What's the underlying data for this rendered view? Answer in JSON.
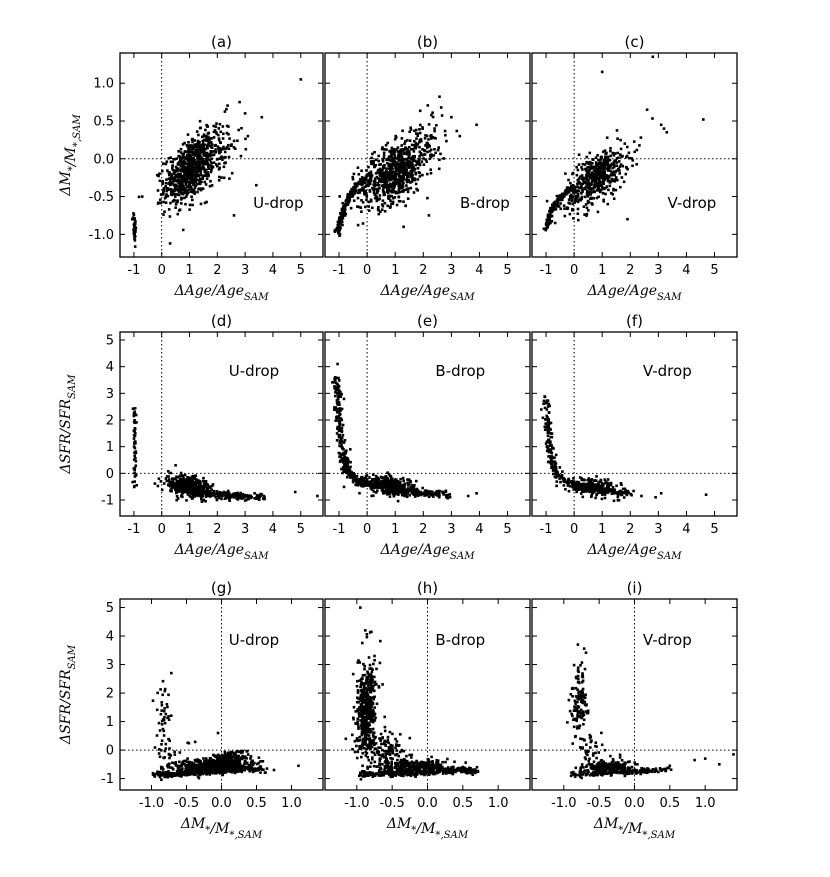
{
  "figure": {
    "colors": {
      "points": "#000000",
      "axes": "#000000",
      "refline": "#000000",
      "background": "#ffffff"
    },
    "row_axis": {
      "row1": {
        "ylabel": "ΔM*/M*,SAM",
        "xlabel": "ΔAge/AgeSAM"
      },
      "row2": {
        "ylabel": "ΔSFR/SFRSAM",
        "xlabel": "ΔAge/AgeSAM"
      },
      "row3": {
        "ylabel": "ΔSFR/SFRSAM",
        "xlabel": "ΔM*/M*,SAM"
      }
    }
  },
  "chart_data": [
    {
      "type": "scatter",
      "panel": "(a)",
      "title": "(a)",
      "annotation": "U-drop",
      "xlabel": "ΔAge/AgeSAM",
      "ylabel": "ΔM*/M*,SAM",
      "xlim": [
        -1.5,
        5.8
      ],
      "ylim": [
        -1.3,
        1.4
      ],
      "xticks": [
        -1,
        0,
        1,
        2,
        3,
        4,
        5
      ],
      "yticks": [
        -1.0,
        -0.5,
        0.0,
        0.5,
        1.0
      ],
      "xtick_labels": [
        "-1",
        "0",
        "1",
        "2",
        "3",
        "4",
        "5"
      ],
      "ytick_labels": [
        "-1.0",
        "-0.5",
        "0.0",
        "0.5",
        "1.0"
      ],
      "refline_x": 0,
      "refline_y": 0,
      "clusters": [
        {
          "cx": 1.0,
          "cy": -0.15,
          "sx": 0.45,
          "sy": 0.22,
          "rho": 0.5,
          "n": 700
        },
        {
          "cx": 1.9,
          "cy": 0.05,
          "sx": 0.5,
          "sy": 0.25,
          "rho": 0.4,
          "n": 120
        },
        {
          "cx": -0.98,
          "cy": -0.9,
          "sx": 0.03,
          "sy": 0.1,
          "rho": 0,
          "n": 40
        }
      ],
      "points": [
        [
          2.8,
          0.75
        ],
        [
          3.0,
          0.6
        ],
        [
          5.0,
          1.05
        ],
        [
          3.6,
          0.55
        ],
        [
          2.6,
          -0.75
        ],
        [
          3.4,
          -0.35
        ],
        [
          0.1,
          -0.7
        ],
        [
          3.1,
          0.3
        ],
        [
          -0.7,
          -0.5
        ]
      ]
    },
    {
      "type": "scatter",
      "panel": "(b)",
      "title": "(b)",
      "annotation": "B-drop",
      "xlabel": "ΔAge/AgeSAM",
      "ylabel": "",
      "xlim": [
        -1.5,
        5.8
      ],
      "ylim": [
        -1.3,
        1.4
      ],
      "xticks": [
        -1,
        0,
        1,
        2,
        3,
        4,
        5
      ],
      "yticks": [
        -1.0,
        -0.5,
        0.0,
        0.5,
        1.0
      ],
      "xtick_labels": [
        "-1",
        "0",
        "1",
        "2",
        "3",
        "4",
        "5"
      ],
      "ytick_labels": [],
      "refline_x": 0,
      "refline_y": 0,
      "clusters": [
        {
          "cx": 0.9,
          "cy": -0.2,
          "sx": 0.6,
          "sy": 0.22,
          "rho": 0.5,
          "n": 650
        },
        {
          "cx": 1.9,
          "cy": 0.1,
          "sx": 0.45,
          "sy": 0.25,
          "rho": 0.4,
          "n": 120
        }
      ],
      "curve": {
        "x": [
          -1.05,
          -1.0,
          -0.9,
          -0.75,
          -0.55,
          -0.3,
          0.0
        ],
        "y": [
          -1.0,
          -0.9,
          -0.75,
          -0.6,
          -0.45,
          -0.33,
          -0.25
        ],
        "n": 200,
        "jitter": 0.05
      },
      "points": [
        [
          3.9,
          0.45
        ],
        [
          3.3,
          0.3
        ],
        [
          2.2,
          -0.75
        ],
        [
          1.3,
          -0.9
        ],
        [
          3.0,
          0.55
        ]
      ]
    },
    {
      "type": "scatter",
      "panel": "(c)",
      "title": "(c)",
      "annotation": "V-drop",
      "xlabel": "ΔAge/AgeSAM",
      "ylabel": "",
      "xlim": [
        -1.5,
        5.8
      ],
      "ylim": [
        -1.3,
        1.4
      ],
      "xticks": [
        -1,
        0,
        1,
        2,
        3,
        4,
        5
      ],
      "yticks": [
        -1.0,
        -0.5,
        0.0,
        0.5,
        1.0
      ],
      "xtick_labels": [
        "-1",
        "0",
        "1",
        "2",
        "3",
        "4",
        "5"
      ],
      "ytick_labels": [],
      "refline_x": 0,
      "refline_y": 0,
      "clusters": [
        {
          "cx": 0.8,
          "cy": -0.25,
          "sx": 0.55,
          "sy": 0.2,
          "rho": 0.6,
          "n": 500
        }
      ],
      "curve": {
        "x": [
          -1.05,
          -0.95,
          -0.8,
          -0.6,
          -0.3,
          0.0
        ],
        "y": [
          -0.95,
          -0.85,
          -0.7,
          -0.55,
          -0.45,
          -0.38
        ],
        "n": 150,
        "jitter": 0.05
      },
      "points": [
        [
          1.0,
          1.15
        ],
        [
          2.6,
          0.65
        ],
        [
          3.1,
          0.45
        ],
        [
          3.3,
          0.35
        ],
        [
          4.6,
          0.52
        ],
        [
          2.8,
          1.35
        ],
        [
          3.2,
          0.4
        ],
        [
          1.9,
          -0.8
        ],
        [
          1.2,
          -0.6
        ]
      ]
    },
    {
      "type": "scatter",
      "panel": "(d)",
      "title": "(d)",
      "annotation": "U-drop",
      "xlabel": "ΔAge/AgeSAM",
      "ylabel": "ΔSFR/SFRSAM",
      "xlim": [
        -1.5,
        5.8
      ],
      "ylim": [
        -1.6,
        5.3
      ],
      "xticks": [
        -1,
        0,
        1,
        2,
        3,
        4,
        5
      ],
      "yticks": [
        -1,
        0,
        1,
        2,
        3,
        4,
        5
      ],
      "xtick_labels": [
        "-1",
        "0",
        "1",
        "2",
        "3",
        "4",
        "5"
      ],
      "ytick_labels": [
        "-1",
        "0",
        "1",
        "2",
        "3",
        "4",
        "5"
      ],
      "refline_x": 0,
      "refline_y": 0,
      "clusters": [
        {
          "cx": 0.95,
          "cy": -0.5,
          "sx": 0.35,
          "sy": 0.2,
          "rho": -0.3,
          "n": 450
        },
        {
          "cx": -0.97,
          "cy": 1.1,
          "sx": 0.03,
          "sy": 0.9,
          "rho": 0,
          "n": 45
        }
      ],
      "curve": {
        "x": [
          0.3,
          0.8,
          1.4,
          2.0,
          2.6,
          3.2,
          3.7
        ],
        "y": [
          -0.4,
          -0.6,
          -0.72,
          -0.8,
          -0.85,
          -0.88,
          -0.9
        ],
        "n": 250,
        "jitter": 0.07
      },
      "points": [
        [
          5.6,
          -0.85
        ],
        [
          4.8,
          -0.7
        ],
        [
          -0.9,
          -0.45
        ],
        [
          -0.1,
          -0.2
        ],
        [
          0.5,
          0.3
        ]
      ]
    },
    {
      "type": "scatter",
      "panel": "(e)",
      "title": "(e)",
      "annotation": "B-drop",
      "xlabel": "ΔAge/AgeSAM",
      "ylabel": "",
      "xlim": [
        -1.5,
        5.8
      ],
      "ylim": [
        -1.6,
        5.3
      ],
      "xticks": [
        -1,
        0,
        1,
        2,
        3,
        4,
        5
      ],
      "yticks": [
        -1,
        0,
        1,
        2,
        3,
        4,
        5
      ],
      "xtick_labels": [
        "-1",
        "0",
        "1",
        "2",
        "3",
        "4",
        "5"
      ],
      "ytick_labels": [],
      "refline_x": 0,
      "refline_y": 0,
      "clusters": [
        {
          "cx": 0.8,
          "cy": -0.45,
          "sx": 0.45,
          "sy": 0.18,
          "rho": -0.3,
          "n": 300
        }
      ],
      "curve": {
        "x": [
          -1.1,
          -1.02,
          -0.95,
          -0.85,
          -0.7,
          -0.4,
          0.0,
          0.6,
          1.2,
          1.8,
          2.4,
          3.0
        ],
        "y": [
          3.6,
          2.4,
          1.4,
          0.6,
          0.1,
          -0.25,
          -0.4,
          -0.55,
          -0.65,
          -0.72,
          -0.78,
          -0.8
        ],
        "n": 500,
        "jitter": 0.08
      },
      "points": [
        [
          -1.05,
          4.1
        ],
        [
          3.6,
          -0.85
        ],
        [
          3.9,
          -0.75
        ],
        [
          -0.6,
          0.9
        ]
      ]
    },
    {
      "type": "scatter",
      "panel": "(f)",
      "title": "(f)",
      "annotation": "V-drop",
      "xlabel": "ΔAge/AgeSAM",
      "ylabel": "",
      "xlim": [
        -1.5,
        5.8
      ],
      "ylim": [
        -1.6,
        5.3
      ],
      "xticks": [
        -1,
        0,
        1,
        2,
        3,
        4,
        5
      ],
      "yticks": [
        -1,
        0,
        1,
        2,
        3,
        4,
        5
      ],
      "xtick_labels": [
        "-1",
        "0",
        "1",
        "2",
        "3",
        "4",
        "5"
      ],
      "ytick_labels": [],
      "refline_x": 0,
      "refline_y": 0,
      "clusters": [
        {
          "cx": 0.7,
          "cy": -0.5,
          "sx": 0.45,
          "sy": 0.16,
          "rho": -0.3,
          "n": 220
        }
      ],
      "curve": {
        "x": [
          -1.0,
          -0.95,
          -0.9,
          -0.8,
          -0.6,
          -0.3,
          0.2,
          0.8,
          1.4,
          2.0
        ],
        "y": [
          3.0,
          2.0,
          1.2,
          0.5,
          0.0,
          -0.3,
          -0.5,
          -0.62,
          -0.7,
          -0.75
        ],
        "n": 300,
        "jitter": 0.07
      },
      "points": [
        [
          4.7,
          -0.8
        ],
        [
          3.1,
          -0.75
        ],
        [
          2.9,
          -0.9
        ],
        [
          2.4,
          -0.85
        ]
      ]
    },
    {
      "type": "scatter",
      "panel": "(g)",
      "title": "(g)",
      "annotation": "U-drop",
      "xlabel": "ΔM*/M*,SAM",
      "ylabel": "ΔSFR/SFRSAM",
      "xlim": [
        -1.45,
        1.45
      ],
      "ylim": [
        -1.4,
        5.3
      ],
      "xticks": [
        -1.0,
        -0.5,
        0.0,
        0.5,
        1.0
      ],
      "yticks": [
        -1,
        0,
        1,
        2,
        3,
        4,
        5
      ],
      "xtick_labels": [
        "-1.0",
        "-0.5",
        "0.0",
        "0.5",
        "1.0"
      ],
      "ytick_labels": [
        "-1",
        "0",
        "1",
        "2",
        "3",
        "4",
        "5"
      ],
      "refline_x": 0,
      "refline_y": 0,
      "clusters": [
        {
          "cx": -0.15,
          "cy": -0.55,
          "sx": 0.25,
          "sy": 0.12,
          "rho": 0.2,
          "n": 500
        },
        {
          "cx": 0.1,
          "cy": -0.3,
          "sx": 0.15,
          "sy": 0.15,
          "rho": 0.3,
          "n": 150
        },
        {
          "cx": -0.83,
          "cy": 1.2,
          "sx": 0.06,
          "sy": 0.8,
          "rho": 0.2,
          "n": 45
        },
        {
          "cx": -0.7,
          "cy": -0.15,
          "sx": 0.15,
          "sy": 0.25,
          "rho": 0,
          "n": 20
        }
      ],
      "curve": {
        "x": [
          -0.95,
          -0.7,
          -0.45,
          -0.2,
          0.1,
          0.4,
          0.6
        ],
        "y": [
          -0.85,
          -0.85,
          -0.8,
          -0.75,
          -0.7,
          -0.65,
          -0.7
        ],
        "n": 250,
        "jitter": 0.06
      },
      "points": [
        [
          1.1,
          -0.55
        ],
        [
          0.65,
          -0.65
        ],
        [
          -0.05,
          0.6
        ],
        [
          0.75,
          -0.7
        ]
      ]
    },
    {
      "type": "scatter",
      "panel": "(h)",
      "title": "(h)",
      "annotation": "B-drop",
      "xlabel": "ΔM*/M*,SAM",
      "ylabel": "",
      "xlim": [
        -1.45,
        1.45
      ],
      "ylim": [
        -1.4,
        5.3
      ],
      "xticks": [
        -1.0,
        -0.5,
        0.0,
        0.5,
        1.0
      ],
      "yticks": [
        -1,
        0,
        1,
        2,
        3,
        4,
        5
      ],
      "xtick_labels": [
        "-1.0",
        "-0.5",
        "0.0",
        "0.5",
        "1.0"
      ],
      "ytick_labels": [],
      "refline_x": 0,
      "refline_y": 0,
      "clusters": [
        {
          "cx": -0.87,
          "cy": 1.5,
          "sx": 0.07,
          "sy": 0.8,
          "rho": 0.3,
          "n": 450
        },
        {
          "cx": -0.2,
          "cy": -0.6,
          "sx": 0.25,
          "sy": 0.13,
          "rho": 0.2,
          "n": 300
        },
        {
          "cx": -0.6,
          "cy": 0.0,
          "sx": 0.18,
          "sy": 0.35,
          "rho": -0.3,
          "n": 150
        }
      ],
      "curve": {
        "x": [
          -0.95,
          -0.7,
          -0.4,
          -0.1,
          0.2,
          0.5,
          0.7
        ],
        "y": [
          -0.85,
          -0.85,
          -0.8,
          -0.78,
          -0.75,
          -0.72,
          -0.75
        ],
        "n": 250,
        "jitter": 0.06
      },
      "points": [
        [
          -0.95,
          5.0
        ],
        [
          -0.88,
          4.2
        ],
        [
          -0.75,
          3.3
        ],
        [
          0.7,
          -0.6
        ]
      ]
    },
    {
      "type": "scatter",
      "panel": "(i)",
      "title": "(i)",
      "annotation": "V-drop",
      "xlabel": "ΔM*/M*,SAM",
      "ylabel": "",
      "xlim": [
        -1.45,
        1.45
      ],
      "ylim": [
        -1.4,
        5.3
      ],
      "xticks": [
        -1.0,
        -0.5,
        0.0,
        0.5,
        1.0
      ],
      "yticks": [
        -1,
        0,
        1,
        2,
        3,
        4,
        5
      ],
      "xtick_labels": [
        "-1.0",
        "-0.5",
        "0.0",
        "0.5",
        "1.0"
      ],
      "ytick_labels": [],
      "refline_x": 0,
      "refline_y": 0,
      "clusters": [
        {
          "cx": -0.78,
          "cy": 1.7,
          "sx": 0.06,
          "sy": 0.7,
          "rho": 0.2,
          "n": 120
        },
        {
          "cx": -0.35,
          "cy": -0.6,
          "sx": 0.18,
          "sy": 0.12,
          "rho": 0.2,
          "n": 200
        },
        {
          "cx": -0.6,
          "cy": -0.1,
          "sx": 0.15,
          "sy": 0.3,
          "rho": 0,
          "n": 40
        }
      ],
      "curve": {
        "x": [
          -0.9,
          -0.65,
          -0.4,
          -0.15,
          0.1,
          0.3,
          0.5
        ],
        "y": [
          -0.85,
          -0.83,
          -0.8,
          -0.75,
          -0.72,
          -0.7,
          -0.7
        ],
        "n": 150,
        "jitter": 0.06
      },
      "points": [
        [
          1.0,
          -0.3
        ],
        [
          1.2,
          -0.5
        ],
        [
          1.4,
          -0.15
        ],
        [
          -0.8,
          3.7
        ],
        [
          0.5,
          -0.55
        ],
        [
          0.85,
          -0.35
        ]
      ]
    }
  ]
}
